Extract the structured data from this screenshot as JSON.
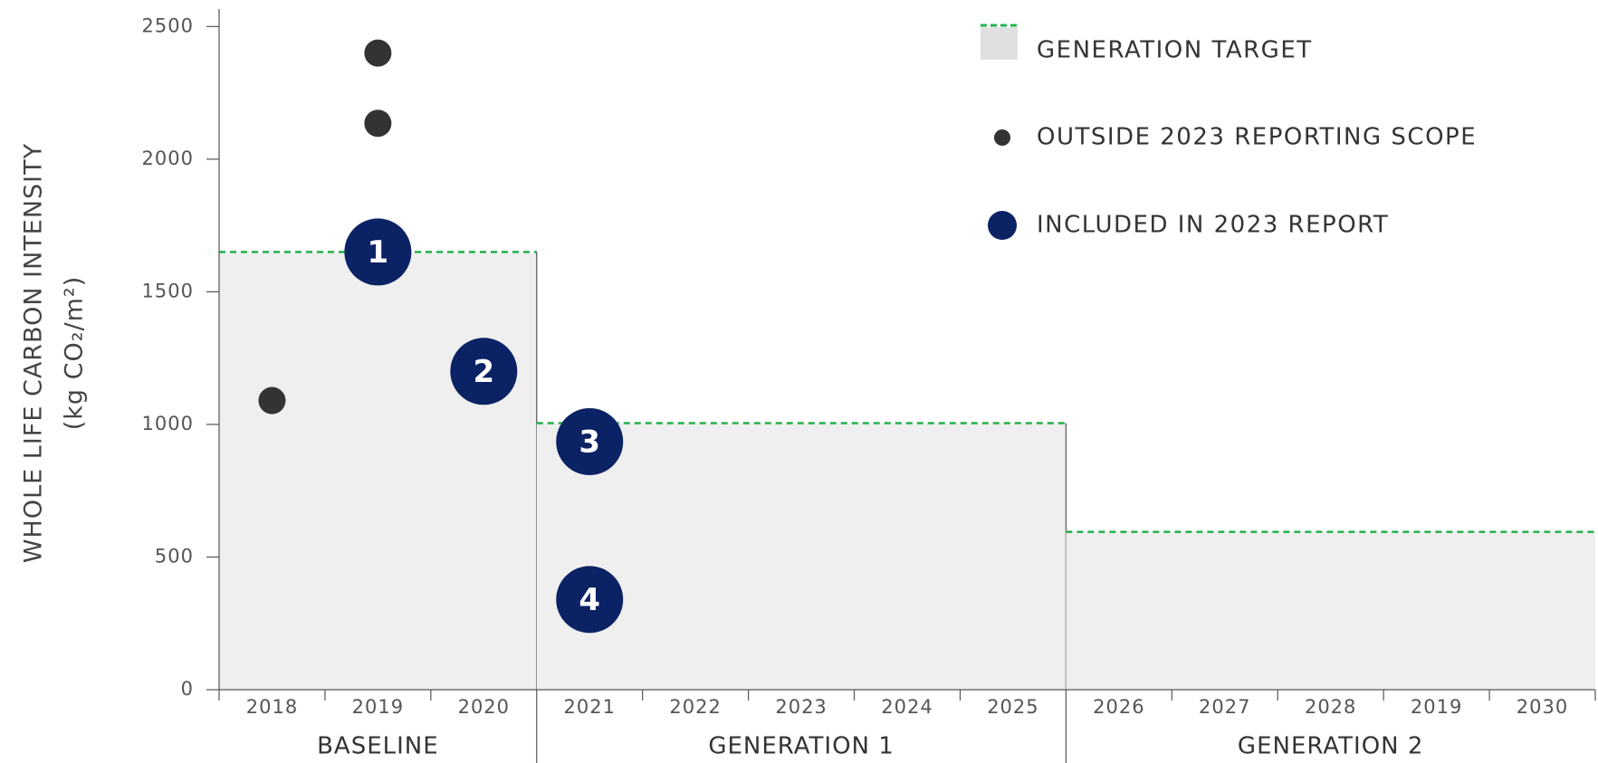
{
  "chart_data": {
    "type": "scatter",
    "ylabel": [
      "WHOLE LIFE CARBON INTENSITY",
      "(kg CO₂/m²)"
    ],
    "ylim": [
      0,
      2600
    ],
    "yticks": [
      0,
      500,
      1000,
      1500,
      2000,
      2500
    ],
    "groups": [
      {
        "name": "BASELINE",
        "categories": [
          "2018",
          "2019",
          "2020"
        ],
        "target": 1650
      },
      {
        "name": "GENERATION 1",
        "categories": [
          "2021",
          "2022",
          "2023",
          "2024",
          "2025"
        ],
        "target": 1005
      },
      {
        "name": "GENERATION 2",
        "categories": [
          "2026",
          "2027",
          "2028",
          "2019",
          "2030"
        ],
        "target": 595
      }
    ],
    "target_legend": "GENERATION TARGET",
    "target_color": "#22b14c",
    "area_color": "#efefef",
    "series": [
      {
        "name": "OUTSIDE 2023 REPORTING SCOPE",
        "color": "#333333",
        "points": [
          {
            "group": "BASELINE",
            "category": "2019",
            "value": 2400
          },
          {
            "group": "BASELINE",
            "category": "2019",
            "value": 2135
          },
          {
            "group": "BASELINE",
            "category": "2018",
            "value": 1090
          }
        ]
      },
      {
        "name": "INCLUDED IN 2023 REPORT",
        "color": "#0b2265",
        "points": [
          {
            "group": "BASELINE",
            "category": "2019",
            "value": 1650,
            "label": "1"
          },
          {
            "group": "BASELINE",
            "category": "2020",
            "value": 1200,
            "label": "2"
          },
          {
            "group": "GENERATION 1",
            "category": "2021",
            "value": 935,
            "label": "3"
          },
          {
            "group": "GENERATION 1",
            "category": "2021",
            "value": 340,
            "label": "4"
          }
        ]
      }
    ]
  }
}
